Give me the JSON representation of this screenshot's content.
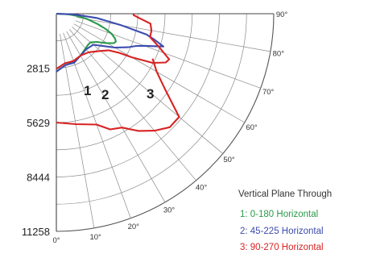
{
  "chart_data": {
    "type": "polar-line",
    "title": "",
    "radial_ticks": [
      "2815",
      "5629",
      "8444",
      "11258"
    ],
    "radial_values": [
      2815,
      5629,
      8444,
      11258
    ],
    "angle_ticks": [
      "0°",
      "10°",
      "20°",
      "30°",
      "40°",
      "50°",
      "60°",
      "70°",
      "80°",
      "90°"
    ],
    "angle_values": [
      0,
      10,
      20,
      30,
      40,
      50,
      60,
      70,
      80,
      90
    ],
    "curve_labels": [
      "1",
      "2",
      "3"
    ],
    "legend": {
      "title": "Vertical Plane Through",
      "entries": [
        "1: 0-180 Horizontal",
        "2: 45-225 Horizontal",
        "3: 90-270 Horizontal"
      ]
    },
    "series": [
      {
        "name": "1: 0-180 Horizontal",
        "color": "#2a9a4a",
        "points": [
          [
            0,
            3000
          ],
          [
            10,
            2700
          ],
          [
            20,
            2650
          ],
          [
            30,
            2500
          ],
          [
            40,
            2350
          ],
          [
            45,
            2300
          ],
          [
            50,
            2300
          ],
          [
            55,
            2550
          ],
          [
            60,
            3050
          ],
          [
            63,
            3350
          ],
          [
            65,
            3400
          ],
          [
            67,
            3300
          ],
          [
            70,
            3050
          ],
          [
            73,
            2650
          ],
          [
            76,
            2200
          ],
          [
            80,
            1650
          ],
          [
            84,
            1100
          ],
          [
            87,
            650
          ],
          [
            90,
            0
          ]
        ]
      },
      {
        "name": "2: 45-225 Horizontal",
        "color": "#3c4bb0",
        "points": [
          [
            0,
            3000
          ],
          [
            10,
            2700
          ],
          [
            20,
            2700
          ],
          [
            30,
            2500
          ],
          [
            40,
            2400
          ],
          [
            50,
            2500
          ],
          [
            55,
            2900
          ],
          [
            60,
            3500
          ],
          [
            65,
            4100
          ],
          [
            68,
            4450
          ],
          [
            70,
            4850
          ],
          [
            72,
            5450
          ],
          [
            73,
            5800
          ],
          [
            75,
            5300
          ],
          [
            77,
            4800
          ],
          [
            80,
            3400
          ],
          [
            84,
            2100
          ],
          [
            88,
            900
          ],
          [
            90,
            0
          ]
        ]
      },
      {
        "name": "3: 90-270 Horizontal",
        "color": "#d92222",
        "points": [
          [
            0,
            2850
          ],
          [
            10,
            2600
          ],
          [
            20,
            2600
          ],
          [
            30,
            2500
          ],
          [
            40,
            2600
          ],
          [
            50,
            3000
          ],
          [
            55,
            3300
          ],
          [
            58,
            3800
          ],
          [
            60,
            4500
          ],
          [
            63,
            5600
          ],
          [
            66,
            6200
          ],
          [
            68,
            6300
          ],
          [
            72,
            5600
          ],
          [
            76,
            5000
          ],
          [
            80,
            5000
          ],
          [
            84,
            4900
          ],
          [
            87,
            4300
          ],
          [
            89,
            4000
          ],
          [
            90,
            4000
          ]
        ]
      }
    ],
    "secondary_red": [
      [
        0,
        5629
      ],
      [
        10,
        5800
      ],
      [
        20,
        6100
      ],
      [
        25,
        6600
      ],
      [
        30,
        6800
      ],
      [
        35,
        7400
      ],
      [
        40,
        7900
      ],
      [
        45,
        8300
      ],
      [
        50,
        8300
      ],
      [
        55,
        6900
      ],
      [
        60,
        6000
      ],
      [
        65,
        5500
      ]
    ],
    "grid": true
  }
}
